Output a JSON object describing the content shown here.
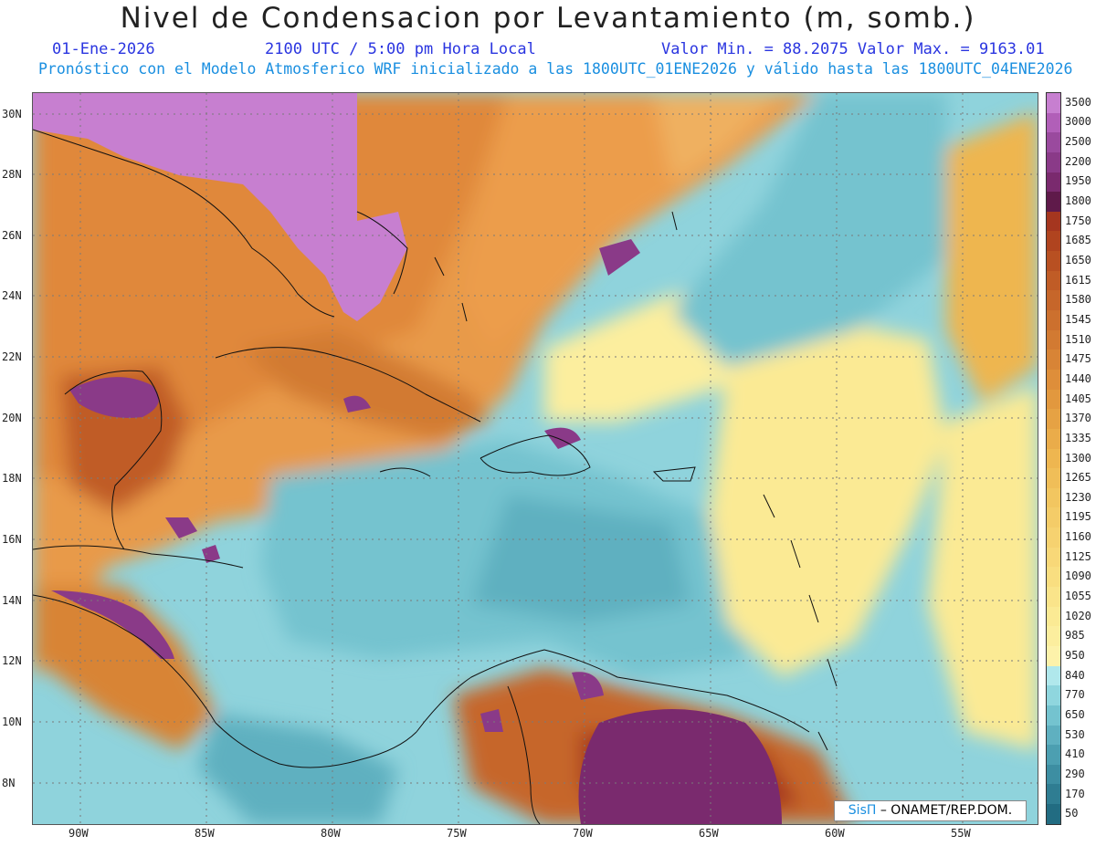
{
  "header": {
    "title": "Nivel de Condensacion por Levantamiento (m, somb.)",
    "date": "01-Ene-2026",
    "time": "2100 UTC / 5:00 pm Hora Local",
    "stats": "Valor Min. = 88.2075  Valor Max. = 9163.01",
    "forecast": "Pronóstico con el Modelo Atmosferico WRF inicializado a las 1800UTC_01ENE2026 y válido hasta las  1800UTC_04ENE2026"
  },
  "axes": {
    "lat_labels": [
      "30N",
      "28N",
      "26N",
      "24N",
      "22N",
      "20N",
      "18N",
      "16N",
      "14N",
      "12N",
      "10N",
      "8N"
    ],
    "lon_labels": [
      "90W",
      "85W",
      "80W",
      "75W",
      "70W",
      "65W",
      "60W",
      "55W"
    ]
  },
  "colorbar": {
    "labels": [
      "3500",
      "3000",
      "2500",
      "2200",
      "1950",
      "1800",
      "1750",
      "1685",
      "1650",
      "1615",
      "1580",
      "1545",
      "1510",
      "1475",
      "1440",
      "1405",
      "1370",
      "1335",
      "1300",
      "1265",
      "1230",
      "1195",
      "1160",
      "1125",
      "1090",
      "1055",
      "1020",
      "985",
      "950",
      "840",
      "770",
      "650",
      "530",
      "410",
      "290",
      "170",
      "50"
    ],
    "colors": [
      "#c77fd0",
      "#b15fb8",
      "#9a4a9e",
      "#8a3a88",
      "#7a2a6e",
      "#5f1a4a",
      "#a5361f",
      "#b0441f",
      "#b85022",
      "#c05c26",
      "#c6662a",
      "#cc702e",
      "#d27a32",
      "#d88436",
      "#de8e3a",
      "#e2983e",
      "#e6a244",
      "#eaac4a",
      "#eeb650",
      "#f0be58",
      "#f2c660",
      "#f4cc68",
      "#f6d270",
      "#f8d878",
      "#f9de80",
      "#faE48a",
      "#fbea94",
      "#fcee9e",
      "#fdf2aa",
      "#b0e8ec",
      "#8fd6de",
      "#74c3cf",
      "#5fb0c0",
      "#4c9fb1",
      "#3d8ea2",
      "#2f7d92",
      "#226c82"
    ]
  },
  "credit": {
    "brand": "SisΠ",
    "text": " – ONAMET/REP.DOM."
  }
}
